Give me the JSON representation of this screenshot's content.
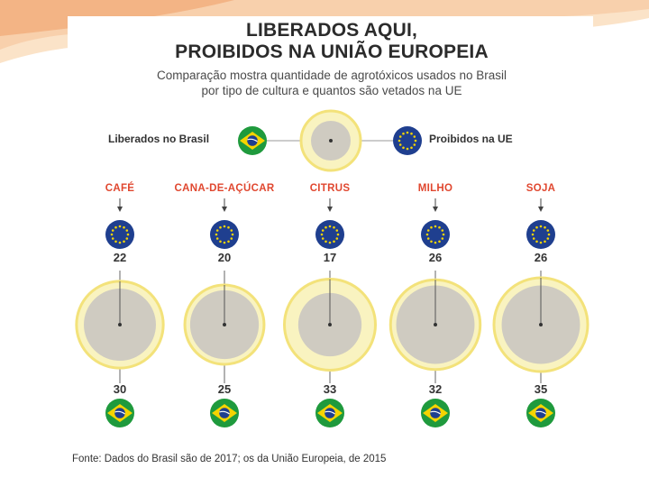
{
  "header": {
    "title_line1": "LIBERADOS AQUI,",
    "title_line2": "PROIBIDOS NA UNIÃO EUROPEIA",
    "subtitle_line1": "Comparação mostra quantidade de agrotóxicos usados no Brasil",
    "subtitle_line2": "por tipo de cultura e quantos são vetados na UE"
  },
  "legend": {
    "left_label": "Liberados no Brasil",
    "right_label": "Proibidos na UE",
    "left_icon": "brazil-flag-icon",
    "right_icon": "eu-flag-icon"
  },
  "chart_data": {
    "type": "proportional-circles",
    "title": "LIBERADOS AQUI, PROIBIDOS NA UNIÃO EUROPEIA",
    "categories": [
      "CAFÉ",
      "CANA-DE-AÇÚCAR",
      "CITRUS",
      "MILHO",
      "SOJA"
    ],
    "series": [
      {
        "name": "Proibidos na UE",
        "values": [
          22,
          20,
          17,
          26,
          26
        ]
      },
      {
        "name": "Liberados no Brasil",
        "values": [
          30,
          25,
          33,
          32,
          35
        ]
      }
    ]
  },
  "source": "Fonte: Dados do Brasil são de 2017; os da União Europeia, de 2015",
  "colors": {
    "accent_red": "#e0472f",
    "circle_fill": "#cfcbc1",
    "circle_ring": "#f3e27a",
    "eu_blue": "#1f3f8f",
    "brazil_green": "#1f9a3d",
    "brazil_yellow": "#f5d400"
  }
}
